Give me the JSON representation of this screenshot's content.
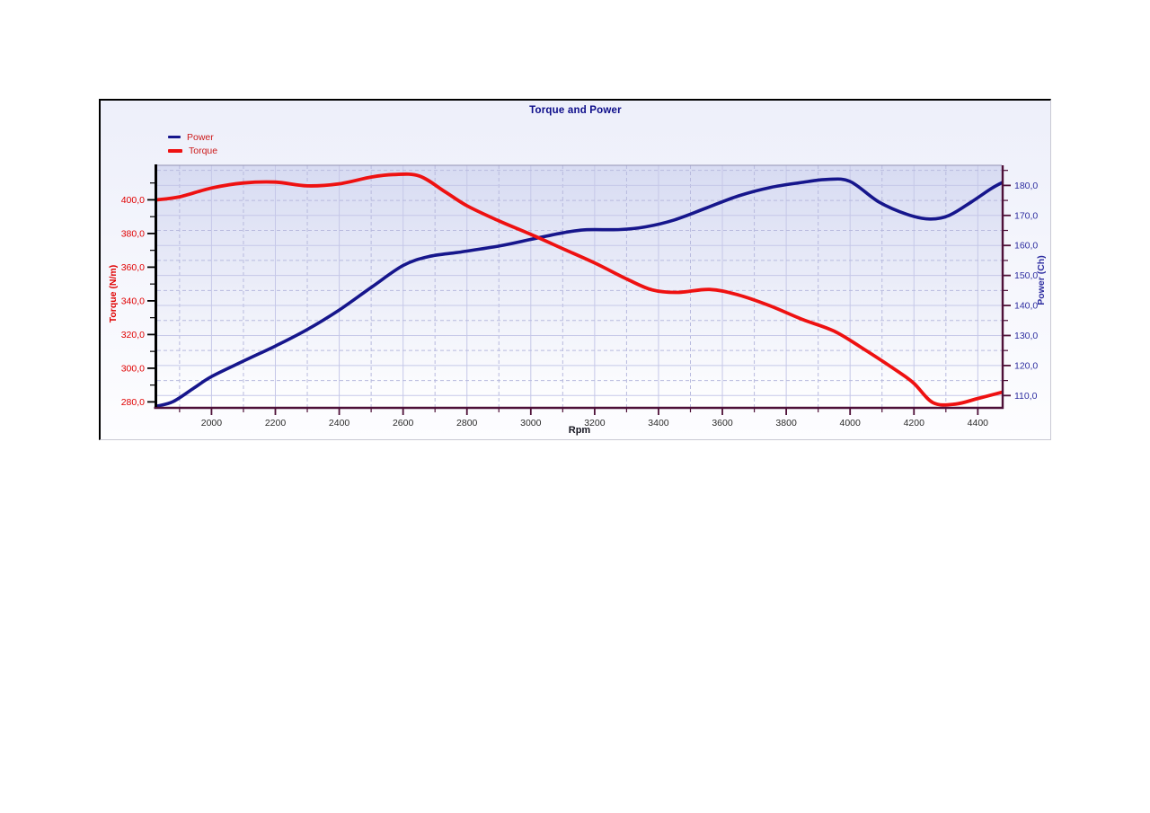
{
  "window": {
    "background": "#ffffff"
  },
  "panel": {
    "border_dark": "#000000",
    "border_light": "#c9c9d4",
    "background_top": "#edeffa",
    "background_bottom": "#fdfdff"
  },
  "chart_data": {
    "type": "line",
    "title": "Torque and Power",
    "title_color": "#0d0d8a",
    "xlabel": "Rpm",
    "xlabel_color": "#151520",
    "xlim": [
      1830,
      4475
    ],
    "x_axis": {
      "color": "#4e1038",
      "tick_label_color": "#2b2b2b",
      "major_ticks": [
        {
          "v": 2000,
          "t": "2000"
        },
        {
          "v": 2200,
          "t": "2200"
        },
        {
          "v": 2400,
          "t": "2400"
        },
        {
          "v": 2600,
          "t": "2600"
        },
        {
          "v": 2800,
          "t": "2800"
        },
        {
          "v": 3000,
          "t": "3000"
        },
        {
          "v": 3200,
          "t": "3200"
        },
        {
          "v": 3400,
          "t": "3400"
        },
        {
          "v": 3600,
          "t": "3600"
        },
        {
          "v": 3800,
          "t": "3800"
        },
        {
          "v": 4000,
          "t": "4000"
        },
        {
          "v": 4200,
          "t": "4200"
        },
        {
          "v": 4400,
          "t": "4400"
        }
      ],
      "minor_ticks": [
        1900,
        2100,
        2300,
        2500,
        2700,
        2900,
        3100,
        3300,
        3500,
        3700,
        3900,
        4100,
        4300
      ]
    },
    "left_axis": {
      "label": "Torque (N/m)",
      "color": "#e00000",
      "axis_line_color": "#000000",
      "lim": [
        277,
        420.5
      ],
      "major_ticks": [
        {
          "v": 280,
          "t": "280,0"
        },
        {
          "v": 300,
          "t": "300,0"
        },
        {
          "v": 320,
          "t": "320,0"
        },
        {
          "v": 340,
          "t": "340,0"
        },
        {
          "v": 360,
          "t": "360,0"
        },
        {
          "v": 380,
          "t": "380,0"
        },
        {
          "v": 400,
          "t": "400,0"
        }
      ],
      "minor_ticks": [
        290,
        310,
        330,
        350,
        370,
        390,
        410
      ]
    },
    "right_axis": {
      "label": "Power (Ch)",
      "color": "#2d2da0",
      "axis_line_color": "#4e1038",
      "lim": [
        106.2,
        186.7
      ],
      "major_ticks": [
        {
          "v": 110,
          "t": "110,0"
        },
        {
          "v": 120,
          "t": "120,0"
        },
        {
          "v": 130,
          "t": "130,0"
        },
        {
          "v": 140,
          "t": "140,0"
        },
        {
          "v": 150,
          "t": "150,0"
        },
        {
          "v": 160,
          "t": "160,0"
        },
        {
          "v": 170,
          "t": "170,0"
        },
        {
          "v": 180,
          "t": "180,0"
        }
      ],
      "minor_ticks": [
        115,
        125,
        135,
        145,
        155,
        165,
        175,
        185
      ]
    },
    "grid": {
      "solid_color": "#c6c8e8",
      "dashed_color": "#b8bade",
      "dash": "4,3"
    },
    "plot_bg_top": "#d7dbf2",
    "plot_bg_bottom": "#ffffff",
    "plot_top_border_color": "#9595b5",
    "legend": [
      {
        "label": "Power",
        "text_color": "#cc1a1a",
        "swatch_color": "#16168c",
        "swatch_w": 14,
        "swatch_h": 3
      },
      {
        "label": "Torque",
        "text_color": "#cc1a1a",
        "swatch_color": "#ee1111",
        "swatch_w": 16,
        "swatch_h": 4
      }
    ],
    "series": [
      {
        "name": "Power",
        "axis": "right",
        "color": "#16168c",
        "width": 3.6,
        "points": [
          [
            1830,
            106.5
          ],
          [
            1880,
            108.0
          ],
          [
            1945,
            112.5
          ],
          [
            2000,
            116.3
          ],
          [
            2100,
            121.5
          ],
          [
            2200,
            126.5
          ],
          [
            2300,
            132.0
          ],
          [
            2400,
            138.5
          ],
          [
            2500,
            146.0
          ],
          [
            2600,
            153.3
          ],
          [
            2680,
            156.3
          ],
          [
            2780,
            157.8
          ],
          [
            2900,
            159.8
          ],
          [
            3000,
            162.0
          ],
          [
            3100,
            164.2
          ],
          [
            3170,
            165.2
          ],
          [
            3280,
            165.3
          ],
          [
            3360,
            166.2
          ],
          [
            3450,
            168.5
          ],
          [
            3550,
            172.5
          ],
          [
            3650,
            176.5
          ],
          [
            3750,
            179.3
          ],
          [
            3850,
            181.0
          ],
          [
            3930,
            182.0
          ],
          [
            4000,
            181.3
          ],
          [
            4090,
            174.5
          ],
          [
            4180,
            170.3
          ],
          [
            4250,
            168.8
          ],
          [
            4310,
            170.0
          ],
          [
            4380,
            174.5
          ],
          [
            4440,
            178.8
          ],
          [
            4475,
            180.9
          ]
        ]
      },
      {
        "name": "Torque",
        "axis": "left",
        "color": "#ee1111",
        "width": 3.8,
        "points": [
          [
            1830,
            400.0
          ],
          [
            1900,
            401.8
          ],
          [
            2000,
            407.0
          ],
          [
            2100,
            410.0
          ],
          [
            2200,
            410.5
          ],
          [
            2300,
            408.3
          ],
          [
            2400,
            409.5
          ],
          [
            2500,
            413.5
          ],
          [
            2570,
            415.0
          ],
          [
            2650,
            414.2
          ],
          [
            2730,
            405.0
          ],
          [
            2800,
            396.5
          ],
          [
            2900,
            387.5
          ],
          [
            3000,
            379.5
          ],
          [
            3100,
            371.0
          ],
          [
            3200,
            362.5
          ],
          [
            3300,
            353.0
          ],
          [
            3380,
            346.5
          ],
          [
            3460,
            345.0
          ],
          [
            3560,
            346.8
          ],
          [
            3650,
            343.5
          ],
          [
            3750,
            337.0
          ],
          [
            3850,
            329.0
          ],
          [
            3950,
            322.0
          ],
          [
            4050,
            310.5
          ],
          [
            4150,
            298.0
          ],
          [
            4200,
            291.0
          ],
          [
            4260,
            279.5
          ],
          [
            4330,
            278.7
          ],
          [
            4400,
            282.0
          ],
          [
            4475,
            285.7
          ]
        ]
      }
    ]
  }
}
